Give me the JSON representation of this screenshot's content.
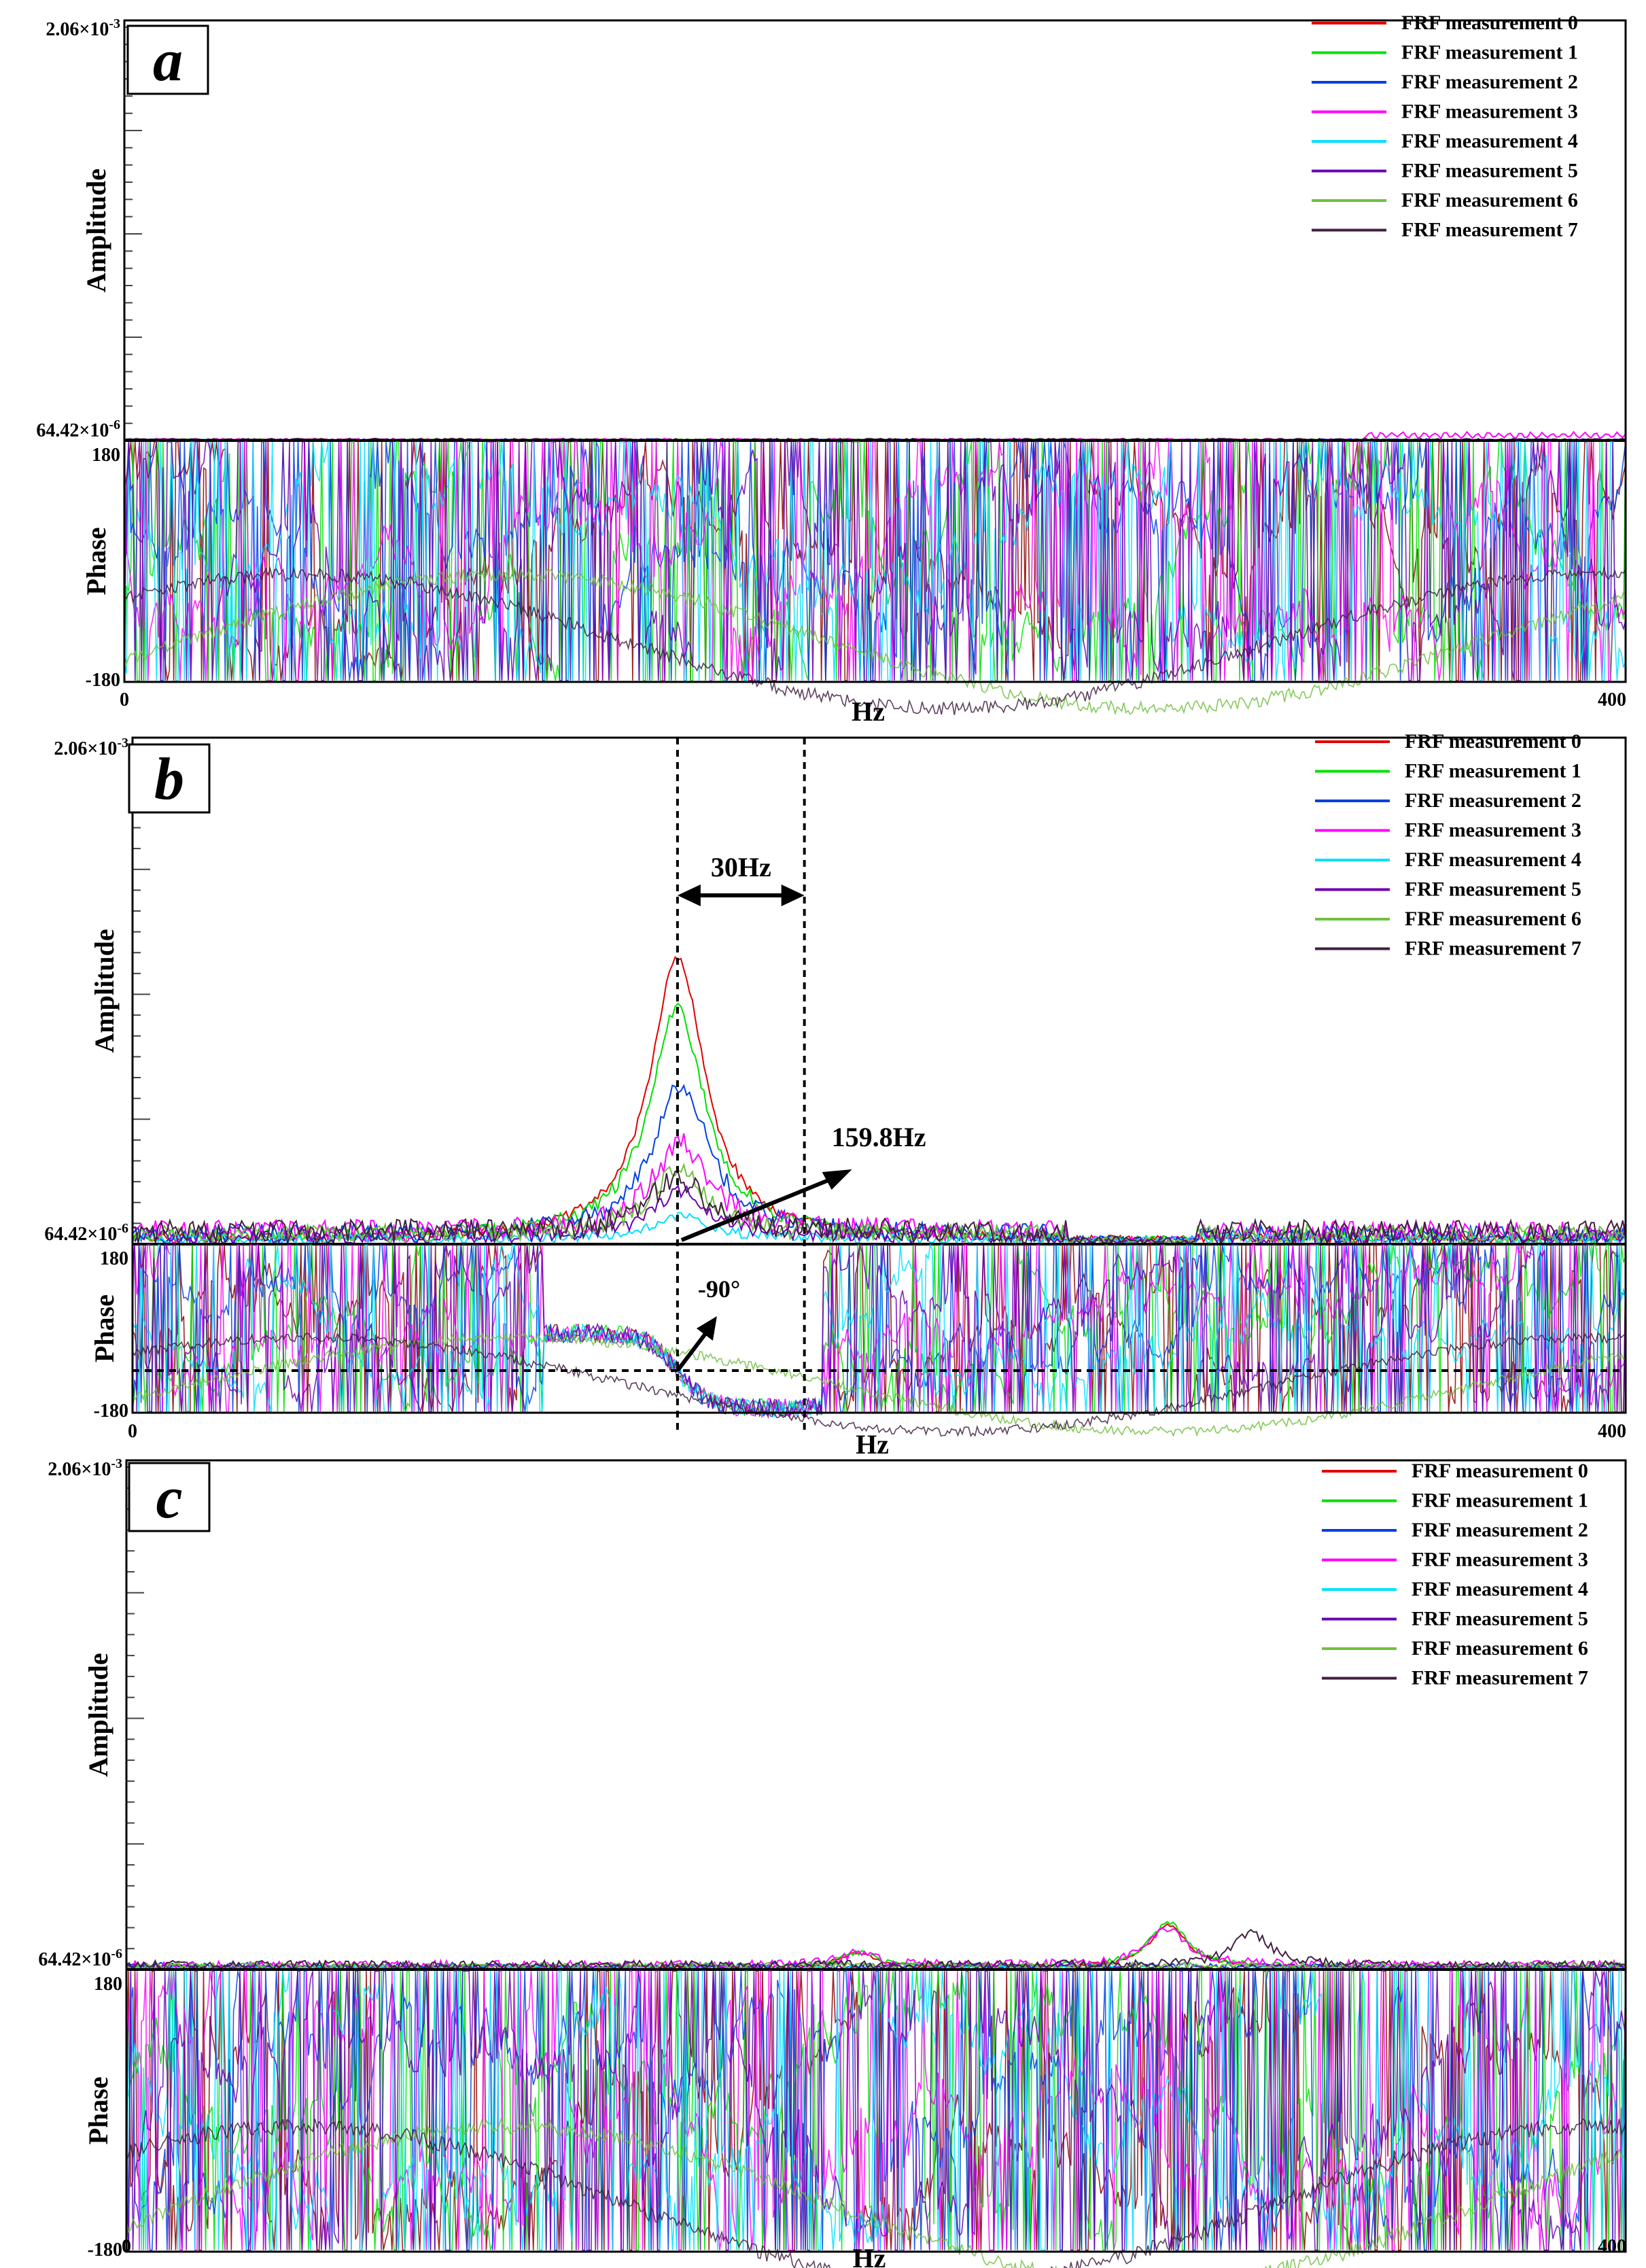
{
  "colors": {
    "FRF measurement 0": "#e00000",
    "FRF measurement 1": "#00e000",
    "FRF measurement 2": "#0040e0",
    "FRF measurement 3": "#ff00ff",
    "FRF measurement 4": "#00e0ff",
    "FRF measurement 5": "#6a00b0",
    "FRF measurement 6": "#70c040",
    "FRF measurement 7": "#402040",
    "phase_0": "#8b0000"
  },
  "chart_data": [
    {
      "type": "line",
      "panel": "a",
      "panel_label": "a",
      "xlabel": "Hz",
      "x_ticks": [
        "0",
        "400"
      ],
      "xlim": [
        0,
        400
      ],
      "amplitude": {
        "ylabel": "Amplitude",
        "top_label": "2.06×10",
        "top_exp": "-3",
        "bottom_label": "64.42×10",
        "bottom_exp": "-6",
        "ylim": [
          6.442e-05,
          0.00206
        ],
        "series": [
          {
            "name": "FRF measurement 0",
            "peaks": []
          },
          {
            "name": "FRF measurement 1",
            "peaks": []
          },
          {
            "name": "FRF measurement 2",
            "peaks": []
          },
          {
            "name": "FRF measurement 3",
            "peaks": []
          },
          {
            "name": "FRF measurement 4",
            "peaks": []
          },
          {
            "name": "FRF measurement 5",
            "peaks": []
          },
          {
            "name": "FRF measurement 6",
            "peaks": []
          },
          {
            "name": "FRF measurement 7",
            "peaks": []
          }
        ]
      },
      "phase": {
        "ylabel": "Phase",
        "top_label": "180",
        "bottom_label": "-180",
        "ylim": [
          -180,
          180
        ]
      },
      "legend": [
        "FRF measurement 0",
        "FRF measurement 1",
        "FRF measurement 2",
        "FRF measurement 3",
        "FRF measurement 4",
        "FRF measurement 5",
        "FRF measurement 6",
        "FRF measurement 7"
      ],
      "legend_position": "top-right"
    },
    {
      "type": "line",
      "panel": "b",
      "panel_label": "b",
      "xlabel": "Hz",
      "x_ticks": [
        "0",
        "400"
      ],
      "xlim": [
        0,
        400
      ],
      "amplitude": {
        "ylabel": "Amplitude",
        "top_label": "2.06×10",
        "top_exp": "-3",
        "bottom_label": "64.42×10",
        "bottom_exp": "-6",
        "ylim": [
          6.442e-05,
          0.00206
        ],
        "series": [
          {
            "name": "FRF measurement 0",
            "peaks": [
              {
                "hz": 146,
                "value": 0.00117
              }
            ]
          },
          {
            "name": "FRF measurement 1",
            "peaks": [
              {
                "hz": 146,
                "value": 0.00096
              }
            ]
          },
          {
            "name": "FRF measurement 2",
            "peaks": [
              {
                "hz": 147,
                "value": 0.00066
              }
            ]
          },
          {
            "name": "FRF measurement 3",
            "peaks": [
              {
                "hz": 147,
                "value": 0.00042
              }
            ]
          },
          {
            "name": "FRF measurement 4",
            "peaks": [
              {
                "hz": 147,
                "value": 0.00016
              }
            ]
          },
          {
            "name": "FRF measurement 5",
            "peaks": [
              {
                "hz": 147,
                "value": 0.00024
              }
            ]
          },
          {
            "name": "FRF measurement 6",
            "peaks": [
              {
                "hz": 146,
                "value": 0.00032
              }
            ]
          },
          {
            "name": "FRF measurement 7",
            "peaks": [
              {
                "hz": 146,
                "value": 0.00028
              }
            ]
          }
        ]
      },
      "phase": {
        "ylabel": "Phase",
        "top_label": "180",
        "bottom_label": "-180",
        "ylim": [
          -180,
          180
        ]
      },
      "annotations": {
        "band_label": "30Hz",
        "band_start_hz": 146,
        "band_end_hz": 180,
        "peak_label": "159.8Hz",
        "phase_label": "-90°",
        "phase_ref_deg": -90
      },
      "legend": [
        "FRF measurement 0",
        "FRF measurement 1",
        "FRF measurement 2",
        "FRF measurement 3",
        "FRF measurement 4",
        "FRF measurement 5",
        "FRF measurement 6",
        "FRF measurement 7"
      ],
      "legend_position": "top-right"
    },
    {
      "type": "line",
      "panel": "c",
      "panel_label": "c",
      "xlabel": "Hz",
      "x_ticks": [
        "0",
        "400"
      ],
      "xlim": [
        0,
        400
      ],
      "amplitude": {
        "ylabel": "Amplitude",
        "top_label": "2.06×10",
        "top_exp": "-3",
        "bottom_label": "64.42×10",
        "bottom_exp": "-6",
        "ylim": [
          6.442e-05,
          0.00206
        ],
        "series": [
          {
            "name": "FRF measurement 0",
            "peaks": [
              {
                "hz": 195,
                "value": 0.00012
              },
              {
                "hz": 278,
                "value": 0.00023
              }
            ]
          },
          {
            "name": "FRF measurement 1",
            "peaks": [
              {
                "hz": 195,
                "value": 0.00012
              },
              {
                "hz": 278,
                "value": 0.00024
              }
            ]
          },
          {
            "name": "FRF measurement 2",
            "peaks": []
          },
          {
            "name": "FRF measurement 3",
            "peaks": [
              {
                "hz": 195,
                "value": 0.00011
              },
              {
                "hz": 278,
                "value": 0.00021
              }
            ]
          },
          {
            "name": "FRF measurement 4",
            "peaks": []
          },
          {
            "name": "FRF measurement 5",
            "peaks": []
          },
          {
            "name": "FRF measurement 6",
            "peaks": []
          },
          {
            "name": "FRF measurement 7",
            "peaks": [
              {
                "hz": 300,
                "value": 0.00019
              }
            ]
          }
        ]
      },
      "phase": {
        "ylabel": "Phase",
        "top_label": "180",
        "bottom_label": "-180",
        "ylim": [
          -180,
          180
        ]
      },
      "legend": [
        "FRF measurement 0",
        "FRF measurement 1",
        "FRF measurement 2",
        "FRF measurement 3",
        "FRF measurement 4",
        "FRF measurement 5",
        "FRF measurement 6",
        "FRF measurement 7"
      ],
      "legend_position": "top-right"
    }
  ]
}
